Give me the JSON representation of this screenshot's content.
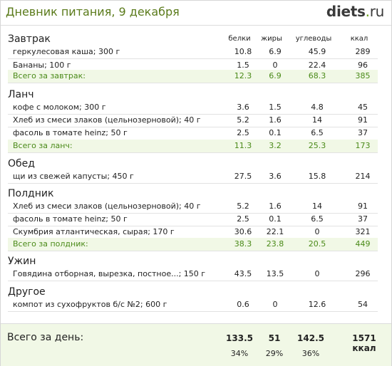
{
  "header": {
    "title": "Дневник питания, 9 декабря",
    "logo_main": "diets",
    "logo_dot": ".",
    "logo_tld": "ru"
  },
  "columns": [
    "белки",
    "жиры",
    "углеводы",
    "ккал"
  ],
  "sections": [
    {
      "title": "Завтрак",
      "rows": [
        {
          "name": "геркулесовая каша; 300 г",
          "b": "10.8",
          "f": "6.9",
          "c": "45.9",
          "kcal": "289"
        },
        {
          "name": "Бананы; 100 г",
          "b": "1.5",
          "f": "0",
          "c": "22.4",
          "kcal": "96"
        },
        {
          "name": "Всего за завтрак:",
          "b": "12.3",
          "f": "6.9",
          "c": "68.3",
          "kcal": "385",
          "total": true
        }
      ]
    },
    {
      "title": "Ланч",
      "rows": [
        {
          "name": "кофе с молоком; 300 г",
          "b": "3.6",
          "f": "1.5",
          "c": "4.8",
          "kcal": "45"
        },
        {
          "name": "Хлеб из смеси злаков (цельнозерновой); 40 г",
          "b": "5.2",
          "f": "1.6",
          "c": "14",
          "kcal": "91"
        },
        {
          "name": "фасоль в томате heinz; 50 г",
          "b": "2.5",
          "f": "0.1",
          "c": "6.5",
          "kcal": "37"
        },
        {
          "name": "Всего за ланч:",
          "b": "11.3",
          "f": "3.2",
          "c": "25.3",
          "kcal": "173",
          "total": true
        }
      ]
    },
    {
      "title": "Обед",
      "rows": [
        {
          "name": "щи из свежей капусты; 450 г",
          "b": "27.5",
          "f": "3.6",
          "c": "15.8",
          "kcal": "214"
        }
      ]
    },
    {
      "title": "Полдник",
      "rows": [
        {
          "name": "Хлеб из смеси злаков (цельнозерновой); 40 г",
          "b": "5.2",
          "f": "1.6",
          "c": "14",
          "kcal": "91"
        },
        {
          "name": "фасоль в томате heinz; 50 г",
          "b": "2.5",
          "f": "0.1",
          "c": "6.5",
          "kcal": "37"
        },
        {
          "name": "Скумбрия атлантическая, сырая; 170 г",
          "b": "30.6",
          "f": "22.1",
          "c": "0",
          "kcal": "321"
        },
        {
          "name": "Всего за полдник:",
          "b": "38.3",
          "f": "23.8",
          "c": "20.5",
          "kcal": "449",
          "total": true
        }
      ]
    },
    {
      "title": "Ужин",
      "rows": [
        {
          "name": "Говядина отборная, вырезка, постное...; 150 г",
          "b": "43.5",
          "f": "13.5",
          "c": "0",
          "kcal": "296"
        }
      ]
    },
    {
      "title": "Другое",
      "rows": [
        {
          "name": "компот из сухофруктов б/с №2; 600 г",
          "b": "0.6",
          "f": "0",
          "c": "12.6",
          "kcal": "54"
        }
      ]
    }
  ],
  "day_total": {
    "label": "Всего за день:",
    "b": "133.5",
    "f": "51",
    "c": "142.5",
    "kcal": "1571 ккал",
    "b_pct": "34%",
    "f_pct": "29%",
    "c_pct": "36%"
  }
}
